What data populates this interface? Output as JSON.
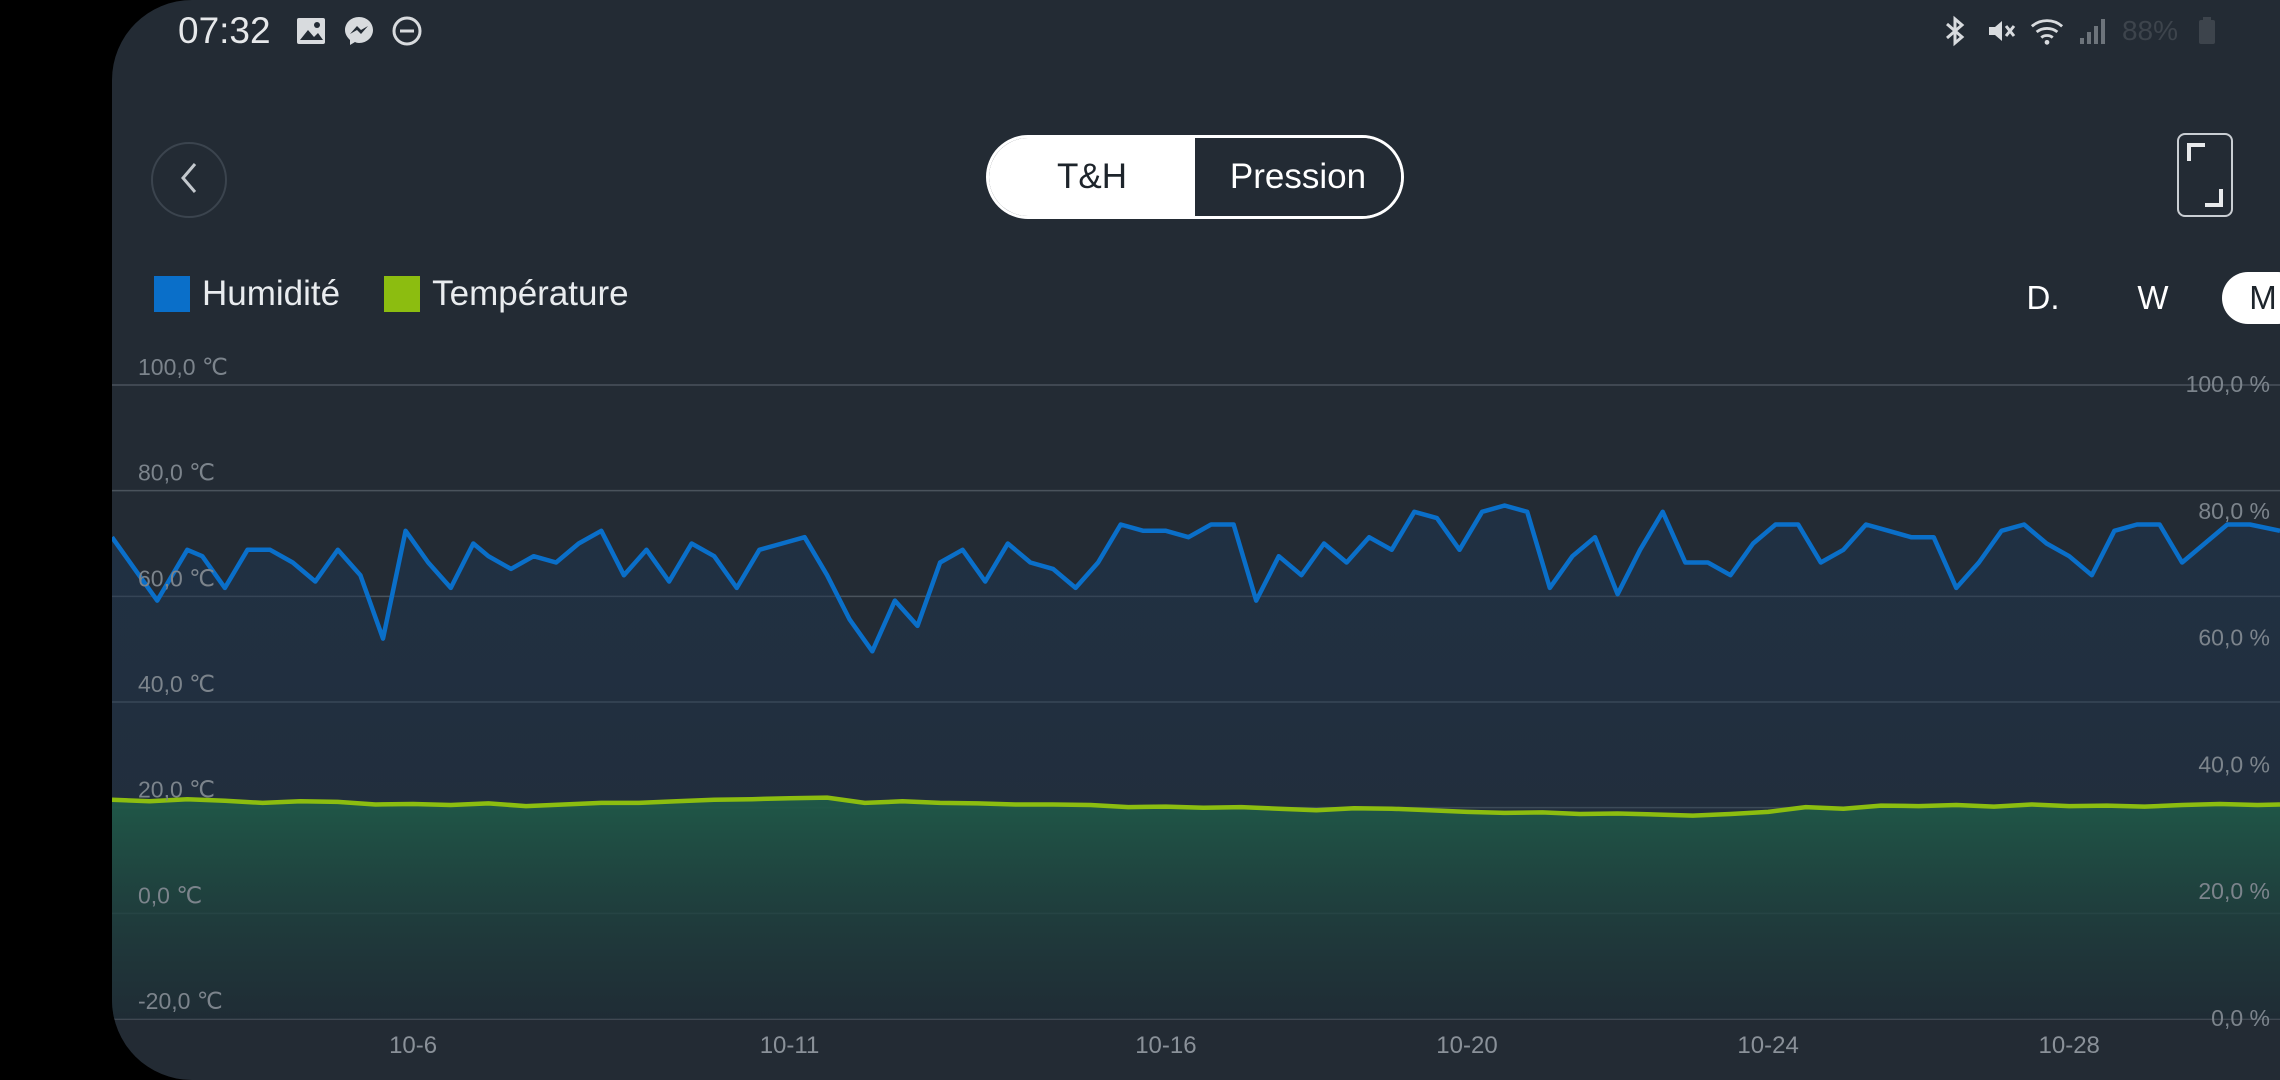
{
  "status_bar": {
    "time": "07:32",
    "left_icons": [
      "image-icon",
      "messenger-icon",
      "do-not-disturb-icon"
    ],
    "right_icons": [
      "bluetooth-icon",
      "mute-icon",
      "wifi-icon",
      "signal-icon"
    ],
    "battery": "88%"
  },
  "header": {
    "tabs": [
      {
        "label": "T&H",
        "active": true
      },
      {
        "label": "Pression",
        "active": false
      }
    ]
  },
  "legend": [
    {
      "label": "Humidité",
      "color": "#0a6fc9"
    },
    {
      "label": "Température",
      "color": "#8cbd10"
    }
  ],
  "range": {
    "options": [
      "D.",
      "W",
      "M"
    ],
    "selected": "M"
  },
  "chart_data": {
    "type": "line",
    "x_ticks": [
      "10-6",
      "10-11",
      "10-16",
      "10-20",
      "10-24",
      "10-28"
    ],
    "y_left_ticks": [
      "100,0 ℃",
      "80,0 ℃",
      "60,0 ℃",
      "40,0 ℃",
      "20,0 ℃",
      "0,0 ℃",
      "-20,0 ℃"
    ],
    "y_right_ticks": [
      "100,0 %",
      "80,0 %",
      "60,0 %",
      "40,0 %",
      "20,0 %",
      "0,0 %"
    ],
    "y_left_range": [
      -20,
      100
    ],
    "y_right_range": [
      0,
      100
    ],
    "grid": true,
    "series": [
      {
        "name": "Humidité",
        "axis": "right",
        "color": "#0a6fc9",
        "x_day": [
          2.0,
          2.3,
          2.6,
          3.0,
          3.2,
          3.5,
          3.8,
          4.1,
          4.4,
          4.7,
          5.0,
          5.3,
          5.6,
          5.9,
          6.2,
          6.5,
          6.8,
          7.0,
          7.3,
          7.6,
          7.9,
          8.2,
          8.5,
          8.8,
          9.1,
          9.4,
          9.7,
          10.0,
          10.3,
          10.6,
          10.9,
          11.2,
          11.5,
          11.8,
          12.1,
          12.4,
          12.7,
          13.0,
          13.3,
          13.6,
          13.9,
          14.2,
          14.5,
          14.8,
          15.1,
          15.4,
          15.7,
          16.0,
          16.3,
          16.6,
          16.9,
          17.2,
          17.5,
          17.8,
          18.1,
          18.4,
          18.7,
          19.0,
          19.3,
          19.6,
          19.9,
          20.2,
          20.5,
          20.8,
          21.1,
          21.4,
          21.7,
          22.0,
          22.3,
          22.6,
          22.9,
          23.2,
          23.5,
          23.8,
          24.1,
          24.4,
          24.7,
          25.0,
          25.3,
          25.6,
          25.9,
          26.2,
          26.5,
          26.8,
          27.1,
          27.4,
          27.7,
          28.0,
          28.3,
          28.6,
          28.9,
          29.2,
          29.5,
          29.8,
          30.1,
          30.4,
          30.8
        ],
        "values": [
          76,
          71,
          66,
          74,
          73,
          68,
          74,
          74,
          72,
          69,
          74,
          70,
          60,
          77,
          72,
          68,
          75,
          73,
          71,
          73,
          72,
          75,
          77,
          70,
          74,
          69,
          75,
          73,
          68,
          74,
          75,
          76,
          70,
          63,
          58,
          66,
          62,
          72,
          74,
          69,
          75,
          72,
          71,
          68,
          72,
          78,
          77,
          77,
          76,
          78,
          78,
          66,
          73,
          70,
          75,
          72,
          76,
          74,
          80,
          79,
          74,
          80,
          81,
          80,
          68,
          73,
          76,
          67,
          74,
          80,
          72,
          72,
          70,
          75,
          78,
          78,
          72,
          74,
          78,
          77,
          76,
          76,
          68,
          72,
          77,
          78,
          75,
          73,
          70,
          77,
          78,
          78,
          72,
          75,
          78,
          78,
          77
        ]
      },
      {
        "name": "Température",
        "axis": "left",
        "color": "#8cbd10",
        "x_day": [
          2.0,
          2.5,
          3.0,
          3.5,
          4.0,
          4.5,
          5.0,
          5.5,
          6.0,
          6.5,
          7.0,
          7.5,
          8.0,
          8.5,
          9.0,
          9.5,
          10.0,
          10.5,
          11.0,
          11.5,
          12.0,
          12.5,
          13.0,
          13.5,
          14.0,
          14.5,
          15.0,
          15.5,
          16.0,
          16.5,
          17.0,
          17.5,
          18.0,
          18.5,
          19.0,
          19.5,
          20.0,
          20.5,
          21.0,
          21.5,
          22.0,
          22.5,
          23.0,
          23.5,
          24.0,
          24.5,
          25.0,
          25.5,
          26.0,
          26.5,
          27.0,
          27.5,
          28.0,
          28.5,
          29.0,
          29.5,
          30.0,
          30.5,
          30.8
        ],
        "values": [
          21.5,
          21.2,
          21.6,
          21.3,
          20.9,
          21.2,
          21.1,
          20.6,
          20.7,
          20.5,
          20.8,
          20.3,
          20.6,
          20.9,
          20.9,
          21.2,
          21.5,
          21.6,
          21.8,
          21.9,
          20.9,
          21.2,
          20.9,
          20.8,
          20.6,
          20.6,
          20.5,
          20.1,
          20.2,
          20.0,
          20.1,
          19.8,
          19.5,
          19.9,
          19.8,
          19.5,
          19.2,
          19.0,
          19.1,
          18.8,
          18.9,
          18.7,
          18.5,
          18.8,
          19.2,
          20.1,
          19.8,
          20.4,
          20.3,
          20.5,
          20.2,
          20.6,
          20.3,
          20.4,
          20.2,
          20.5,
          20.7,
          20.5,
          20.6
        ]
      }
    ]
  }
}
